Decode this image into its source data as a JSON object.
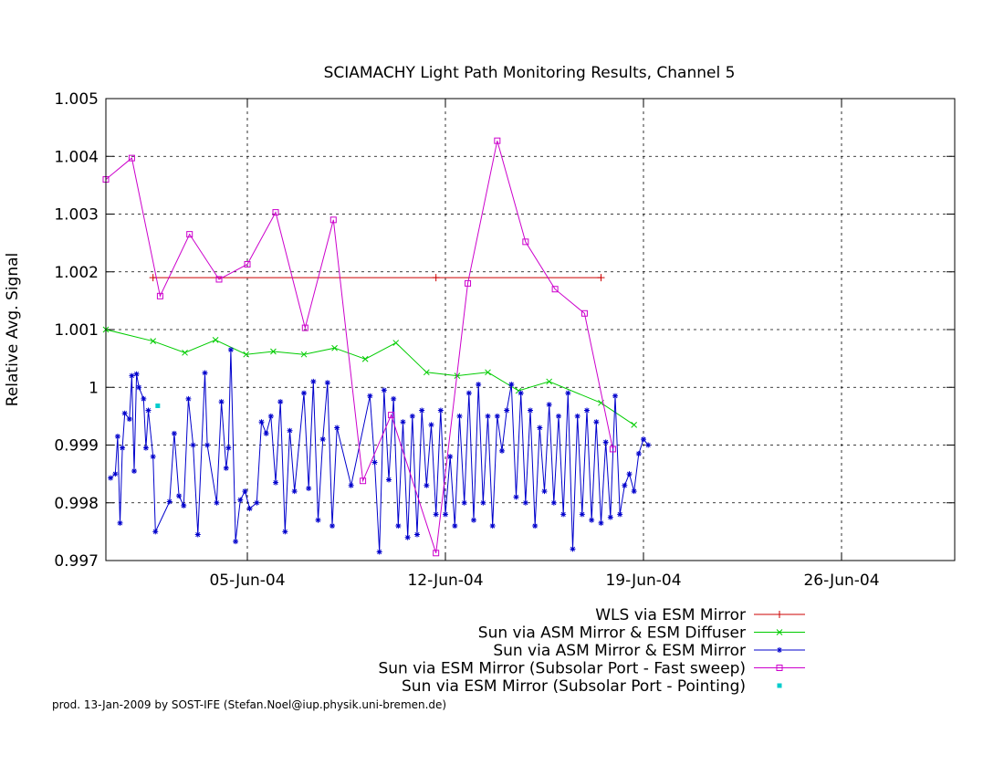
{
  "chart_data": {
    "type": "line",
    "title": "SCIAMACHY Light Path Monitoring Results, Channel 5",
    "ylabel": "Relative Avg. Signal",
    "xlabel": "",
    "xlim": [
      "2004-05-31",
      "2004-06-30"
    ],
    "ylim": [
      0.997,
      1.005
    ],
    "grid": true,
    "legend_position": "bottom-right",
    "xticks": [
      {
        "date": "2004-06-05",
        "label": "05-Jun-04"
      },
      {
        "date": "2004-06-12",
        "label": "12-Jun-04"
      },
      {
        "date": "2004-06-19",
        "label": "19-Jun-04"
      },
      {
        "date": "2004-06-26",
        "label": "26-Jun-04"
      }
    ],
    "yticks": [
      {
        "value": 0.997,
        "label": "0.997"
      },
      {
        "value": 0.998,
        "label": "0.998"
      },
      {
        "value": 0.999,
        "label": "0.999"
      },
      {
        "value": 1.0,
        "label": "1"
      },
      {
        "value": 1.001,
        "label": "1.001"
      },
      {
        "value": 1.002,
        "label": "1.002"
      },
      {
        "value": 1.003,
        "label": "1.003"
      },
      {
        "value": 1.004,
        "label": "1.004"
      },
      {
        "value": 1.005,
        "label": "1.005"
      }
    ],
    "series": [
      {
        "name": "WLS via ESM Mirror",
        "color": "#cc0000",
        "marker": "plus",
        "points": [
          [
            "2004-06-01T16:00",
            1.0019
          ],
          [
            "2004-06-11T16:00",
            1.0019
          ],
          [
            "2004-06-17T12:00",
            1.0019
          ]
        ]
      },
      {
        "name": "Sun via ASM Mirror & ESM Diffuser",
        "color": "#00cc00",
        "marker": "x",
        "points": [
          [
            "2004-05-31T00:00",
            1.001
          ],
          [
            "2004-06-01T16:00",
            1.0008
          ],
          [
            "2004-06-02T19:00",
            1.0006
          ],
          [
            "2004-06-03T21:00",
            1.00082
          ],
          [
            "2004-06-04T23:00",
            1.00057
          ],
          [
            "2004-06-05T22:00",
            1.00062
          ],
          [
            "2004-06-07T00:00",
            1.00057
          ],
          [
            "2004-06-08T02:00",
            1.00068
          ],
          [
            "2004-06-09T04:00",
            1.00049
          ],
          [
            "2004-06-10T06:00",
            1.00077
          ],
          [
            "2004-06-11T08:00",
            1.00026
          ],
          [
            "2004-06-12T10:00",
            1.0002
          ],
          [
            "2004-06-13T12:00",
            1.00026
          ],
          [
            "2004-06-14T14:00",
            0.99994
          ],
          [
            "2004-06-15T16:00",
            1.0001
          ],
          [
            "2004-06-17T12:00",
            0.99973
          ],
          [
            "2004-06-18T16:00",
            0.99935
          ]
        ]
      },
      {
        "name": "Sun via ASM Mirror & ESM Mirror",
        "color": "#0000cc",
        "marker": "star",
        "points": [
          [
            "2004-05-31T04:00",
            0.99843
          ],
          [
            "2004-05-31T08:00",
            0.9985
          ],
          [
            "2004-05-31T10:00",
            0.99915
          ],
          [
            "2004-05-31T12:00",
            0.99765
          ],
          [
            "2004-05-31T14:00",
            0.99895
          ],
          [
            "2004-05-31T16:00",
            0.99955
          ],
          [
            "2004-05-31T20:00",
            0.99945
          ],
          [
            "2004-05-31T22:00",
            1.0002
          ],
          [
            "2004-06-01T00:00",
            0.99855
          ],
          [
            "2004-06-01T02:00",
            1.00023
          ],
          [
            "2004-06-01T04:00",
            1.0
          ],
          [
            "2004-06-01T08:00",
            0.9998
          ],
          [
            "2004-06-01T10:00",
            0.99895
          ],
          [
            "2004-06-01T12:00",
            0.9996
          ],
          [
            "2004-06-01T16:00",
            0.9988
          ],
          [
            "2004-06-01T18:00",
            0.9975
          ],
          [
            "2004-06-02T06:00",
            0.99802
          ],
          [
            "2004-06-02T10:00",
            0.9992
          ],
          [
            "2004-06-02T14:00",
            0.99812
          ],
          [
            "2004-06-02T18:00",
            0.99795
          ],
          [
            "2004-06-02T22:00",
            0.9998
          ],
          [
            "2004-06-03T02:00",
            0.999
          ],
          [
            "2004-06-03T06:00",
            0.99745
          ],
          [
            "2004-06-03T12:00",
            1.00025
          ],
          [
            "2004-06-03T14:00",
            0.999
          ],
          [
            "2004-06-03T22:00",
            0.998
          ],
          [
            "2004-06-04T02:00",
            0.99975
          ],
          [
            "2004-06-04T06:00",
            0.9986
          ],
          [
            "2004-06-04T08:00",
            0.99895
          ],
          [
            "2004-06-04T10:00",
            1.00065
          ],
          [
            "2004-06-04T14:00",
            0.99733
          ],
          [
            "2004-06-04T18:00",
            0.99805
          ],
          [
            "2004-06-04T22:00",
            0.9982
          ],
          [
            "2004-06-05T02:00",
            0.9979
          ],
          [
            "2004-06-05T08:00",
            0.998
          ],
          [
            "2004-06-05T12:00",
            0.9994
          ],
          [
            "2004-06-05T16:00",
            0.9992
          ],
          [
            "2004-06-05T20:00",
            0.9995
          ],
          [
            "2004-06-06T00:00",
            0.99835
          ],
          [
            "2004-06-06T04:00",
            0.99975
          ],
          [
            "2004-06-06T08:00",
            0.9975
          ],
          [
            "2004-06-06T12:00",
            0.99925
          ],
          [
            "2004-06-06T16:00",
            0.9982
          ],
          [
            "2004-06-07T00:00",
            0.9999
          ],
          [
            "2004-06-07T04:00",
            0.99825
          ],
          [
            "2004-06-07T08:00",
            1.0001
          ],
          [
            "2004-06-07T12:00",
            0.9977
          ],
          [
            "2004-06-07T16:00",
            0.9991
          ],
          [
            "2004-06-07T20:00",
            1.00008
          ],
          [
            "2004-06-08T00:00",
            0.9976
          ],
          [
            "2004-06-08T04:00",
            0.9993
          ],
          [
            "2004-06-08T16:00",
            0.9983
          ],
          [
            "2004-06-09T08:00",
            0.99985
          ],
          [
            "2004-06-09T12:00",
            0.9987
          ],
          [
            "2004-06-09T16:00",
            0.99715
          ],
          [
            "2004-06-09T20:00",
            0.99995
          ],
          [
            "2004-06-10T00:00",
            0.9984
          ],
          [
            "2004-06-10T04:00",
            0.9998
          ],
          [
            "2004-06-10T08:00",
            0.9976
          ],
          [
            "2004-06-10T12:00",
            0.9994
          ],
          [
            "2004-06-10T16:00",
            0.9974
          ],
          [
            "2004-06-10T20:00",
            0.9995
          ],
          [
            "2004-06-11T00:00",
            0.99745
          ],
          [
            "2004-06-11T04:00",
            0.9996
          ],
          [
            "2004-06-11T08:00",
            0.9983
          ],
          [
            "2004-06-11T12:00",
            0.99935
          ],
          [
            "2004-06-11T16:00",
            0.9978
          ],
          [
            "2004-06-11T20:00",
            0.9996
          ],
          [
            "2004-06-12T00:00",
            0.9978
          ],
          [
            "2004-06-12T04:00",
            0.9988
          ],
          [
            "2004-06-12T08:00",
            0.9976
          ],
          [
            "2004-06-12T12:00",
            0.9995
          ],
          [
            "2004-06-12T16:00",
            0.998
          ],
          [
            "2004-06-12T20:00",
            0.9999
          ],
          [
            "2004-06-13T00:00",
            0.9977
          ],
          [
            "2004-06-13T04:00",
            1.00005
          ],
          [
            "2004-06-13T08:00",
            0.998
          ],
          [
            "2004-06-13T12:00",
            0.9995
          ],
          [
            "2004-06-13T16:00",
            0.9976
          ],
          [
            "2004-06-13T20:00",
            0.9995
          ],
          [
            "2004-06-14T00:00",
            0.9989
          ],
          [
            "2004-06-14T04:00",
            0.9996
          ],
          [
            "2004-06-14T08:00",
            1.00005
          ],
          [
            "2004-06-14T12:00",
            0.9981
          ],
          [
            "2004-06-14T16:00",
            0.9999
          ],
          [
            "2004-06-14T20:00",
            0.998
          ],
          [
            "2004-06-15T00:00",
            0.9996
          ],
          [
            "2004-06-15T04:00",
            0.9976
          ],
          [
            "2004-06-15T08:00",
            0.9993
          ],
          [
            "2004-06-15T12:00",
            0.9982
          ],
          [
            "2004-06-15T16:00",
            0.9997
          ],
          [
            "2004-06-15T20:00",
            0.998
          ],
          [
            "2004-06-16T00:00",
            0.9995
          ],
          [
            "2004-06-16T04:00",
            0.9978
          ],
          [
            "2004-06-16T08:00",
            0.9999
          ],
          [
            "2004-06-16T12:00",
            0.9972
          ],
          [
            "2004-06-16T16:00",
            0.9995
          ],
          [
            "2004-06-16T20:00",
            0.9978
          ],
          [
            "2004-06-17T00:00",
            0.9996
          ],
          [
            "2004-06-17T04:00",
            0.9977
          ],
          [
            "2004-06-17T08:00",
            0.9994
          ],
          [
            "2004-06-17T12:00",
            0.99765
          ],
          [
            "2004-06-17T16:00",
            0.99905
          ],
          [
            "2004-06-17T20:00",
            0.99775
          ],
          [
            "2004-06-18T00:00",
            0.99985
          ],
          [
            "2004-06-18T04:00",
            0.9978
          ],
          [
            "2004-06-18T08:00",
            0.9983
          ],
          [
            "2004-06-18T12:00",
            0.9985
          ],
          [
            "2004-06-18T16:00",
            0.9982
          ],
          [
            "2004-06-18T20:00",
            0.99885
          ],
          [
            "2004-06-19T00:00",
            0.9991
          ],
          [
            "2004-06-19T04:00",
            0.999
          ]
        ]
      },
      {
        "name": "Sun via ESM Mirror (Subsolar Port - Fast sweep)",
        "color": "#cc00cc",
        "marker": "square",
        "points": [
          [
            "2004-05-31T00:00",
            1.0036
          ],
          [
            "2004-05-31T22:00",
            1.00397
          ],
          [
            "2004-06-01T22:00",
            1.00158
          ],
          [
            "2004-06-02T23:00",
            1.00265
          ],
          [
            "2004-06-04T00:00",
            1.00187
          ],
          [
            "2004-06-05T00:00",
            1.00213
          ],
          [
            "2004-06-06T00:00",
            1.00303
          ],
          [
            "2004-06-07T01:00",
            1.00103
          ],
          [
            "2004-06-08T01:00",
            1.0029
          ],
          [
            "2004-06-09T02:00",
            0.99838
          ],
          [
            "2004-06-10T02:00",
            0.99952
          ],
          [
            "2004-06-11T16:00",
            0.99713
          ],
          [
            "2004-06-12T19:00",
            1.0018
          ],
          [
            "2004-06-13T20:00",
            1.00427
          ],
          [
            "2004-06-14T20:00",
            1.00252
          ],
          [
            "2004-06-15T21:00",
            1.0017
          ],
          [
            "2004-06-16T22:00",
            1.00128
          ],
          [
            "2004-06-17T22:00",
            0.99893
          ]
        ]
      },
      {
        "name": "Sun via ESM Mirror (Subsolar Port - Pointing)",
        "color": "#00cccc",
        "marker": "dot",
        "points": [
          [
            "2004-06-01T20:00",
            0.99968
          ]
        ]
      }
    ]
  },
  "footer": "prod. 13-Jan-2009 by SOST-IFE (Stefan.Noel@iup.physik.uni-bremen.de)"
}
